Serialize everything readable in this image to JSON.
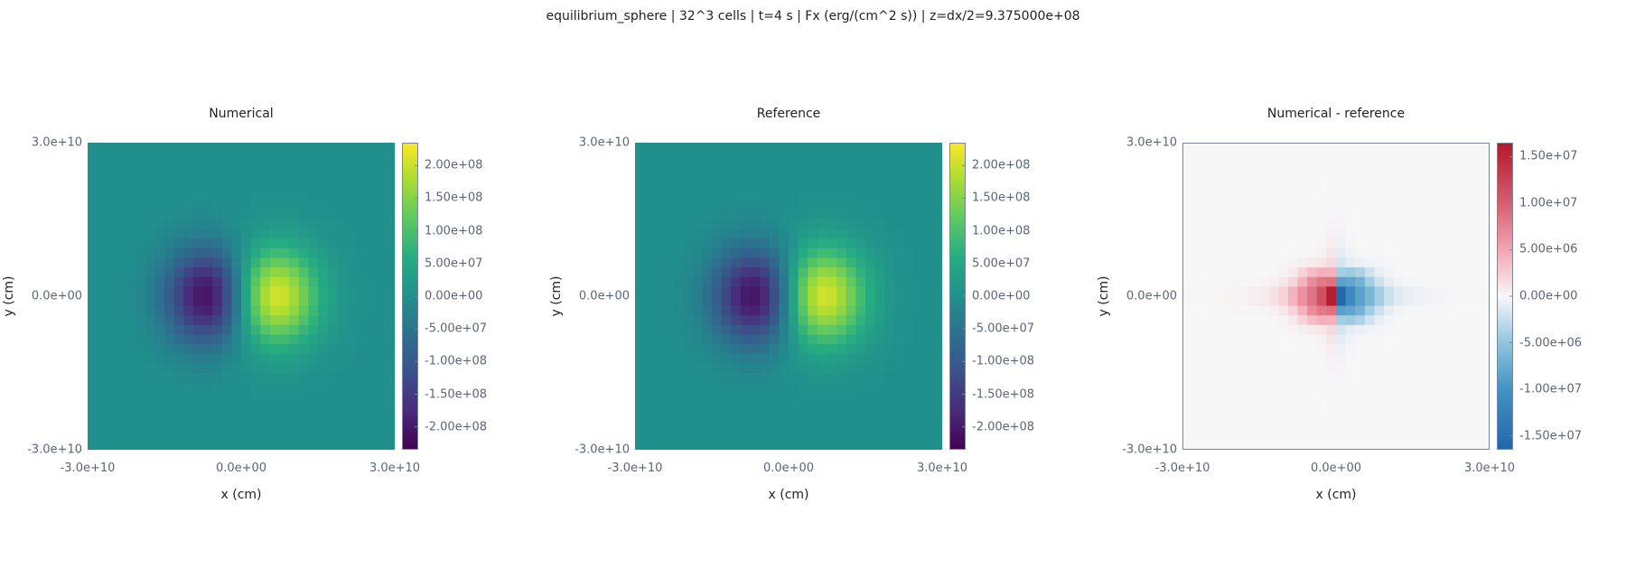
{
  "figure": {
    "title": "equilibrium_sphere | 32^3 cells | t=4 s | Fx (erg/(cm^2 s)) | z=dx/2=9.375000e+08"
  },
  "chart_data": [
    {
      "type": "heatmap",
      "title": "Numerical",
      "xlabel": "x (cm)",
      "ylabel": "y (cm)",
      "xlim": [
        -30000000000.0,
        30000000000.0
      ],
      "ylim": [
        -30000000000.0,
        30000000000.0
      ],
      "x_ticks": [
        "-3.0e+10",
        "0.0e+00",
        "3.0e+10"
      ],
      "y_ticks": [
        "3.0e+10",
        "0.0e+00",
        "-3.0e+10"
      ],
      "grid_cells": 32,
      "colormap": "viridis",
      "colorbar_range": [
        -235000000.0,
        235000000.0
      ],
      "colorbar_ticks": [
        {
          "value": 200000000.0,
          "label": "2.00e+08"
        },
        {
          "value": 150000000.0,
          "label": "1.50e+08"
        },
        {
          "value": 100000000.0,
          "label": "1.00e+08"
        },
        {
          "value": 50000000.0,
          "label": "5.00e+07"
        },
        {
          "value": 0,
          "label": "0.00e+00"
        },
        {
          "value": -50000000.0,
          "label": "-5.00e+07"
        },
        {
          "value": -100000000.0,
          "label": "-1.00e+08"
        },
        {
          "value": -150000000.0,
          "label": "-1.50e+08"
        },
        {
          "value": -200000000.0,
          "label": "-2.00e+08"
        }
      ],
      "field": {
        "kind": "dipole",
        "amplitude": 232000000.0,
        "peak_x": 6000000000.0,
        "peak_y": 0,
        "sigma_x": 6000000000.0,
        "sigma_y": 6500000000.0
      },
      "framed": false
    },
    {
      "type": "heatmap",
      "title": "Reference",
      "xlabel": "x (cm)",
      "ylabel": "y (cm)",
      "xlim": [
        -30000000000.0,
        30000000000.0
      ],
      "ylim": [
        -30000000000.0,
        30000000000.0
      ],
      "x_ticks": [
        "-3.0e+10",
        "0.0e+00",
        "3.0e+10"
      ],
      "y_ticks": [
        "3.0e+10",
        "0.0e+00",
        "-3.0e+10"
      ],
      "grid_cells": 32,
      "colormap": "viridis",
      "colorbar_range": [
        -235000000.0,
        235000000.0
      ],
      "colorbar_ticks": [
        {
          "value": 200000000.0,
          "label": "2.00e+08"
        },
        {
          "value": 150000000.0,
          "label": "1.50e+08"
        },
        {
          "value": 100000000.0,
          "label": "1.00e+08"
        },
        {
          "value": 50000000.0,
          "label": "5.00e+07"
        },
        {
          "value": 0,
          "label": "0.00e+00"
        },
        {
          "value": -50000000.0,
          "label": "-5.00e+07"
        },
        {
          "value": -100000000.0,
          "label": "-1.00e+08"
        },
        {
          "value": -150000000.0,
          "label": "-1.50e+08"
        },
        {
          "value": -200000000.0,
          "label": "-2.00e+08"
        }
      ],
      "field": {
        "kind": "dipole",
        "amplitude": 232000000.0,
        "peak_x": 6000000000.0,
        "peak_y": 0,
        "sigma_x": 6000000000.0,
        "sigma_y": 6500000000.0
      },
      "framed": false
    },
    {
      "type": "heatmap",
      "title": "Numerical - reference",
      "xlabel": "x (cm)",
      "ylabel": "y (cm)",
      "xlim": [
        -30000000000.0,
        30000000000.0
      ],
      "ylim": [
        -30000000000.0,
        30000000000.0
      ],
      "x_ticks": [
        "-3.0e+10",
        "0.0e+00",
        "3.0e+10"
      ],
      "y_ticks": [
        "3.0e+10",
        "0.0e+00",
        "-3.0e+10"
      ],
      "grid_cells": 32,
      "colormap": "diverging-blue-white-red",
      "colorbar_range": [
        -16500000.0,
        16500000.0
      ],
      "colorbar_ticks": [
        {
          "value": 15000000.0,
          "label": "1.50e+07"
        },
        {
          "value": 10000000.0,
          "label": "1.00e+07"
        },
        {
          "value": 5000000.0,
          "label": "5.00e+06"
        },
        {
          "value": 0,
          "label": "0.00e+00"
        },
        {
          "value": -5000000.0,
          "label": "-5.00e+06"
        },
        {
          "value": -10000000.0,
          "label": "-1.00e+07"
        },
        {
          "value": -15000000.0,
          "label": "-1.50e+07"
        }
      ],
      "field": {
        "kind": "cross_difference",
        "amplitude": 16200000.0
      },
      "framed": true
    }
  ]
}
